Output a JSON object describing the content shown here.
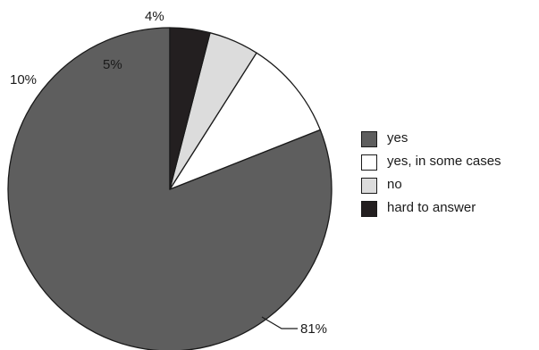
{
  "chart_data": {
    "type": "pie",
    "categories": [
      "yes",
      "yes, in some cases",
      "no",
      "hard to answer"
    ],
    "values": [
      81,
      10,
      5,
      4
    ],
    "value_labels": [
      "81%",
      "10%",
      "5%",
      "4%"
    ],
    "colors": [
      "#5e5e5e",
      "#ffffff",
      "#dcdcdc",
      "#231f20"
    ],
    "start": "12 o'clock, counter-clockwise",
    "legend_position": "right"
  }
}
